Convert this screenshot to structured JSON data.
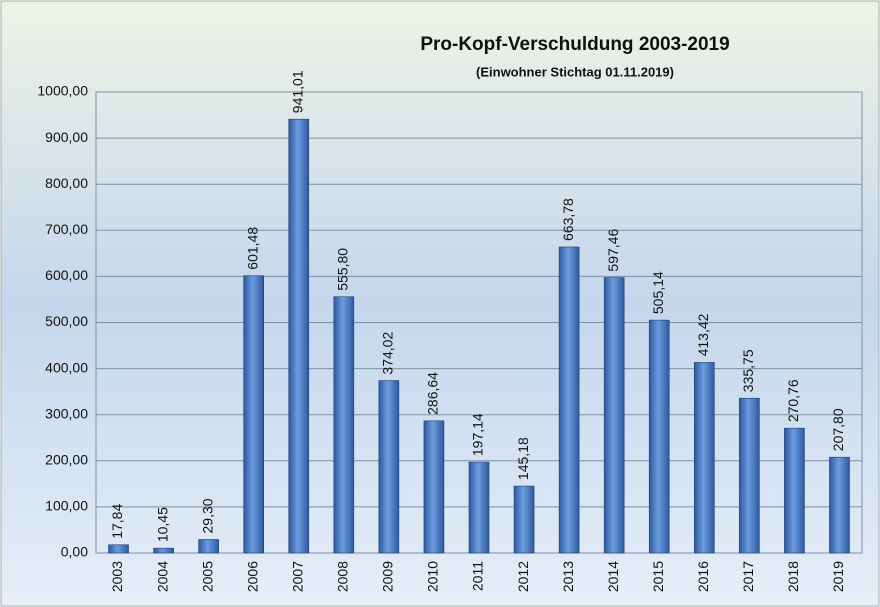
{
  "chart_data": {
    "type": "bar",
    "title": "Pro-Kopf-Verschuldung 2003-2019",
    "subtitle": "(Einwohner Stichtag 01.11.2019)",
    "categories": [
      "2003",
      "2004",
      "2005",
      "2006",
      "2007",
      "2008",
      "2009",
      "2010",
      "2011",
      "2012",
      "2013",
      "2014",
      "2015",
      "2016",
      "2017",
      "2018",
      "2019"
    ],
    "values": [
      17.84,
      10.45,
      29.3,
      601.48,
      941.01,
      555.8,
      374.02,
      286.64,
      197.14,
      145.18,
      663.78,
      597.46,
      505.14,
      413.42,
      335.75,
      270.76,
      207.8
    ],
    "value_labels": [
      "17,84",
      "10,45",
      "29,30",
      "601,48",
      "941,01",
      "555,80",
      "374,02",
      "286,64",
      "197,14",
      "145,18",
      "663,78",
      "597,46",
      "505,14",
      "413,42",
      "335,75",
      "270,76",
      "207,80"
    ],
    "color": "#4a7cc4",
    "ylim": [
      0,
      1000
    ],
    "yticks": [
      {
        "value": 0,
        "label": "0,00"
      },
      {
        "value": 100,
        "label": "100,00"
      },
      {
        "value": 200,
        "label": "200,00"
      },
      {
        "value": 300,
        "label": "300,00"
      },
      {
        "value": 400,
        "label": "400,00"
      },
      {
        "value": 500,
        "label": "500,00"
      },
      {
        "value": 600,
        "label": "600,00"
      },
      {
        "value": 700,
        "label": "700,00"
      },
      {
        "value": 800,
        "label": "800,00"
      },
      {
        "value": 900,
        "label": "900,00"
      },
      {
        "value": 1000,
        "label": "1000,00"
      }
    ],
    "grid": true
  }
}
